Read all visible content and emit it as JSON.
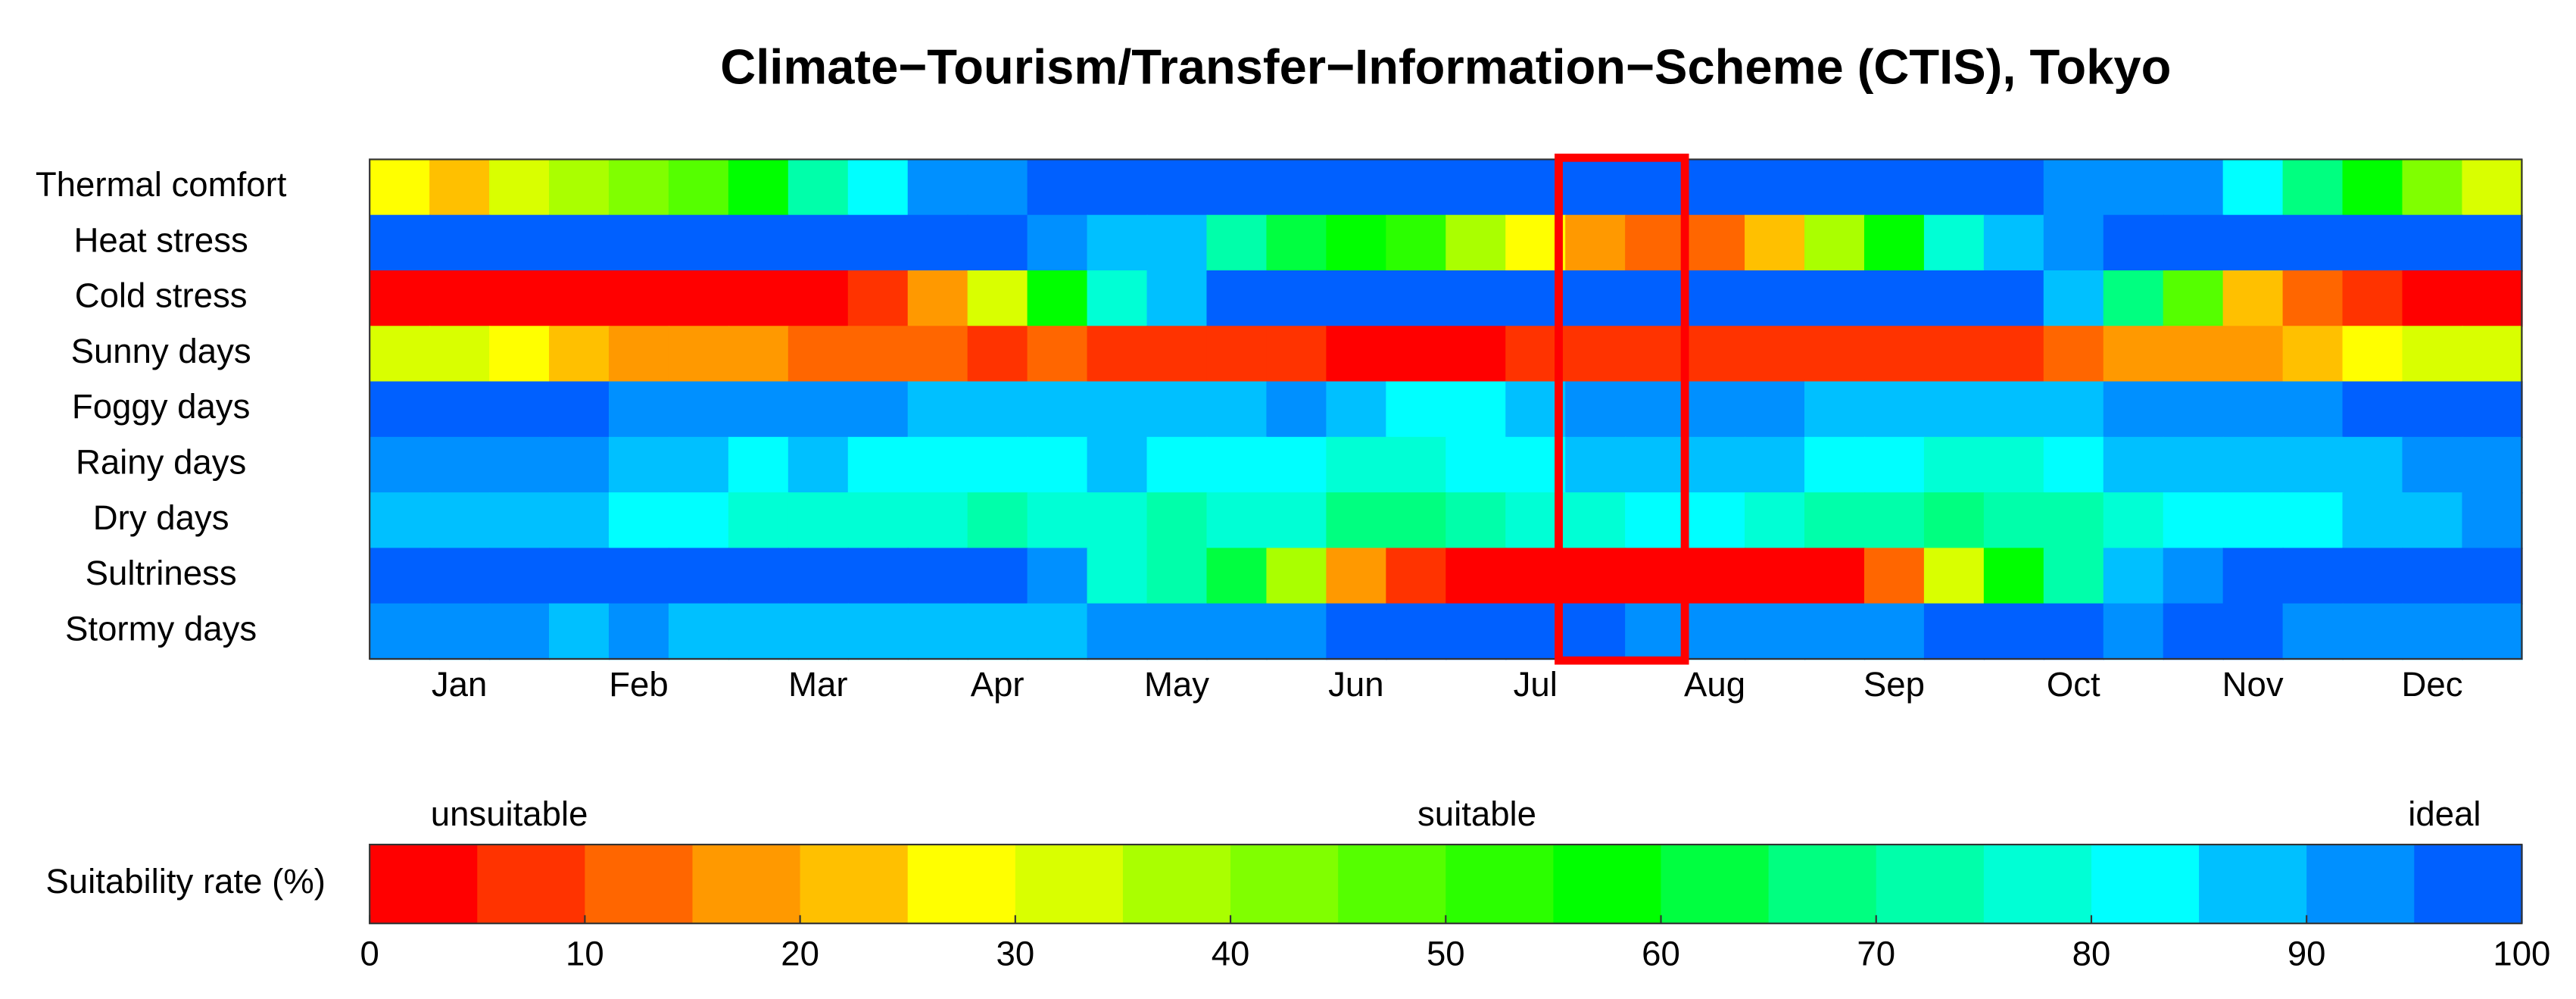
{
  "chart_data": {
    "type": "heatmap",
    "title": "Climate−Tourism/Transfer−Information−Scheme (CTIS), Tokyo",
    "categories": [
      null,
      "Jan",
      null,
      null,
      "Feb",
      null,
      null,
      "Mar",
      null,
      null,
      "Apr",
      null,
      null,
      "May",
      null,
      null,
      "Jun",
      null,
      null,
      "Jul",
      null,
      null,
      "Aug",
      null,
      null,
      "Sep",
      null,
      null,
      "Oct",
      null,
      null,
      "Nov",
      null,
      null,
      "Dec",
      null
    ],
    "series": [
      {
        "name": "Thermal comfort",
        "values": [
          27.5,
          22.5,
          32.5,
          37.5,
          42.5,
          47.5,
          57.5,
          72.5,
          82.5,
          92.5,
          92.5,
          97.5,
          97.5,
          97.5,
          97.5,
          97.5,
          97.5,
          97.5,
          97.5,
          97.5,
          97.5,
          97.5,
          97.5,
          97.5,
          97.5,
          97.5,
          97.5,
          97.5,
          92.5,
          92.5,
          92.5,
          82.5,
          67.5,
          57.5,
          42.5,
          32.5
        ]
      },
      {
        "name": "Heat stress",
        "values": [
          97.5,
          97.5,
          97.5,
          97.5,
          97.5,
          97.5,
          97.5,
          97.5,
          97.5,
          97.5,
          97.5,
          92.5,
          87.5,
          87.5,
          72.5,
          62.5,
          57.5,
          52.5,
          37.5,
          27.5,
          17.5,
          12.5,
          12.5,
          22.5,
          37.5,
          57.5,
          77.5,
          87.5,
          92.5,
          97.5,
          97.5,
          97.5,
          97.5,
          97.5,
          97.5,
          97.5
        ]
      },
      {
        "name": "Cold stress",
        "values": [
          2.5,
          2.5,
          2.5,
          2.5,
          2.5,
          2.5,
          2.5,
          2.5,
          7.5,
          17.5,
          32.5,
          57.5,
          77.5,
          87.5,
          97.5,
          97.5,
          97.5,
          97.5,
          97.5,
          97.5,
          97.5,
          97.5,
          97.5,
          97.5,
          97.5,
          97.5,
          97.5,
          97.5,
          87.5,
          67.5,
          47.5,
          22.5,
          12.5,
          7.5,
          2.5,
          2.5
        ]
      },
      {
        "name": "Sunny days",
        "values": [
          32.5,
          32.5,
          27.5,
          22.5,
          17.5,
          17.5,
          17.5,
          12.5,
          12.5,
          12.5,
          7.5,
          12.5,
          7.5,
          7.5,
          7.5,
          7.5,
          2.5,
          2.5,
          2.5,
          7.5,
          7.5,
          7.5,
          7.5,
          7.5,
          7.5,
          7.5,
          7.5,
          7.5,
          12.5,
          17.5,
          17.5,
          17.5,
          22.5,
          27.5,
          32.5,
          32.5
        ]
      },
      {
        "name": "Foggy days",
        "values": [
          97.5,
          97.5,
          97.5,
          97.5,
          92.5,
          92.5,
          92.5,
          92.5,
          92.5,
          87.5,
          87.5,
          87.5,
          87.5,
          87.5,
          87.5,
          92.5,
          87.5,
          82.5,
          82.5,
          87.5,
          92.5,
          92.5,
          92.5,
          92.5,
          87.5,
          87.5,
          87.5,
          87.5,
          87.5,
          92.5,
          92.5,
          92.5,
          92.5,
          97.5,
          97.5,
          97.5
        ]
      },
      {
        "name": "Rainy days",
        "values": [
          92.5,
          92.5,
          92.5,
          92.5,
          87.5,
          87.5,
          82.5,
          87.5,
          82.5,
          82.5,
          82.5,
          82.5,
          87.5,
          82.5,
          82.5,
          82.5,
          77.5,
          77.5,
          82.5,
          82.5,
          87.5,
          87.5,
          87.5,
          87.5,
          82.5,
          82.5,
          77.5,
          77.5,
          82.5,
          87.5,
          87.5,
          87.5,
          87.5,
          87.5,
          92.5,
          92.5
        ]
      },
      {
        "name": "Dry days",
        "values": [
          87.5,
          87.5,
          87.5,
          87.5,
          82.5,
          82.5,
          77.5,
          77.5,
          77.5,
          77.5,
          72.5,
          77.5,
          77.5,
          72.5,
          77.5,
          77.5,
          67.5,
          67.5,
          72.5,
          77.5,
          77.5,
          82.5,
          82.5,
          77.5,
          72.5,
          72.5,
          67.5,
          72.5,
          72.5,
          77.5,
          82.5,
          82.5,
          82.5,
          87.5,
          87.5,
          92.5
        ]
      },
      {
        "name": "Sultriness",
        "values": [
          97.5,
          97.5,
          97.5,
          97.5,
          97.5,
          97.5,
          97.5,
          97.5,
          97.5,
          97.5,
          97.5,
          92.5,
          77.5,
          72.5,
          62.5,
          37.5,
          17.5,
          7.5,
          2.5,
          2.5,
          2.5,
          2.5,
          2.5,
          2.5,
          2.5,
          12.5,
          32.5,
          57.5,
          72.5,
          87.5,
          92.5,
          97.5,
          97.5,
          97.5,
          97.5,
          97.5
        ]
      },
      {
        "name": "Stormy days",
        "values": [
          92.5,
          92.5,
          92.5,
          87.5,
          92.5,
          87.5,
          87.5,
          87.5,
          87.5,
          87.5,
          87.5,
          87.5,
          92.5,
          92.5,
          92.5,
          92.5,
          97.5,
          97.5,
          97.5,
          97.5,
          97.5,
          92.5,
          92.5,
          92.5,
          92.5,
          92.5,
          97.5,
          97.5,
          97.5,
          92.5,
          97.5,
          97.5,
          92.5,
          92.5,
          92.5,
          92.5
        ]
      }
    ],
    "highlight_columns": [
      20,
      21
    ],
    "highlight_color": "#ff0000",
    "colorbar": {
      "label": "Suitability rate (%)",
      "lim": [
        0,
        100
      ],
      "ticks": [
        0,
        10,
        20,
        30,
        40,
        50,
        60,
        70,
        80,
        90,
        100
      ],
      "annotations": [
        "unsuitable",
        "suitable",
        "ideal"
      ],
      "colors": [
        "#ff0000",
        "#ff3300",
        "#ff6600",
        "#ff9900",
        "#ffc000",
        "#ffff00",
        "#d9ff00",
        "#aaff00",
        "#80ff00",
        "#55ff00",
        "#2bff00",
        "#00ff00",
        "#00ff40",
        "#00ff80",
        "#00ffaa",
        "#00ffd5",
        "#00ffff",
        "#00c0ff",
        "#0090ff",
        "#0060ff"
      ]
    }
  }
}
